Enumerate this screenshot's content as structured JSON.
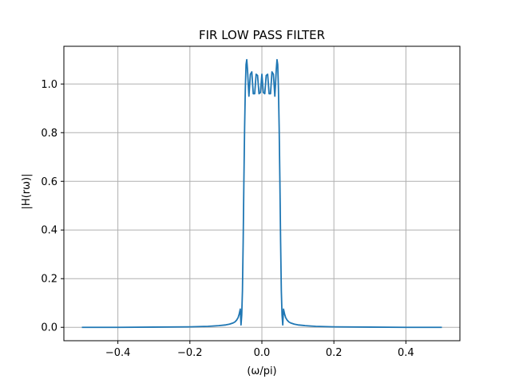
{
  "chart_data": {
    "type": "line",
    "title": "FIR LOW PASS FILTER",
    "xlabel": "(ω/pi)",
    "ylabel": "|H(rω)|",
    "xlim": [
      -0.55,
      0.55
    ],
    "ylim": [
      -0.055,
      1.155
    ],
    "grid": true,
    "x_ticks": [
      -0.4,
      -0.2,
      0.0,
      0.2,
      0.4
    ],
    "x_tick_labels": [
      "−0.4",
      "−0.2",
      "0.0",
      "0.2",
      "0.4"
    ],
    "y_ticks": [
      0.0,
      0.2,
      0.4,
      0.6,
      0.8,
      1.0
    ],
    "y_tick_labels": [
      "0.0",
      "0.2",
      "0.4",
      "0.6",
      "0.8",
      "1.0"
    ],
    "line_color": "#1f77b4",
    "series": [
      {
        "x": [
          -0.5,
          -0.4,
          -0.3,
          -0.2,
          -0.15,
          -0.12,
          -0.1,
          -0.09,
          -0.08,
          -0.075,
          -0.07,
          -0.066,
          -0.063,
          -0.06,
          -0.058,
          -0.056,
          -0.054,
          -0.052,
          -0.05,
          -0.048,
          -0.046,
          -0.044,
          -0.042,
          -0.04,
          -0.036,
          -0.032,
          -0.028,
          -0.024,
          -0.02,
          -0.016,
          -0.012,
          -0.008,
          -0.004,
          0.0,
          0.004,
          0.008,
          0.012,
          0.016,
          0.02,
          0.024,
          0.028,
          0.032,
          0.036,
          0.04,
          0.042,
          0.044,
          0.046,
          0.048,
          0.05,
          0.052,
          0.054,
          0.056,
          0.058,
          0.06,
          0.063,
          0.066,
          0.07,
          0.075,
          0.08,
          0.09,
          0.1,
          0.12,
          0.15,
          0.2,
          0.3,
          0.4,
          0.5
        ],
        "y": [
          0.0,
          0.0,
          0.001,
          0.002,
          0.004,
          0.007,
          0.01,
          0.013,
          0.018,
          0.022,
          0.03,
          0.04,
          0.055,
          0.075,
          0.01,
          0.05,
          0.15,
          0.35,
          0.6,
          0.82,
          0.98,
          1.08,
          1.1,
          1.06,
          0.95,
          1.04,
          1.05,
          0.96,
          0.96,
          1.04,
          1.035,
          0.96,
          0.965,
          1.04,
          0.965,
          0.96,
          1.035,
          1.04,
          0.96,
          0.96,
          1.05,
          1.04,
          0.95,
          1.06,
          1.1,
          1.08,
          0.98,
          0.82,
          0.6,
          0.35,
          0.15,
          0.05,
          0.01,
          0.075,
          0.055,
          0.04,
          0.03,
          0.022,
          0.018,
          0.013,
          0.01,
          0.007,
          0.004,
          0.002,
          0.001,
          0.0,
          0.0
        ]
      }
    ]
  }
}
